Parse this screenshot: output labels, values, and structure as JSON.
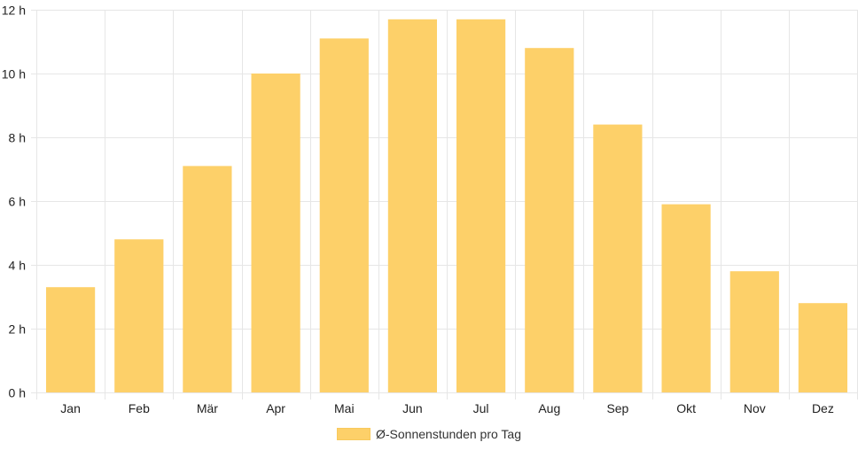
{
  "chart_data": {
    "type": "bar",
    "categories": [
      "Jan",
      "Feb",
      "Mär",
      "Apr",
      "Mai",
      "Jun",
      "Jul",
      "Aug",
      "Sep",
      "Okt",
      "Nov",
      "Dez"
    ],
    "series": [
      {
        "name": "Ø-Sonnenstunden pro Tag",
        "values": [
          3.3,
          4.8,
          7.1,
          10.0,
          11.1,
          11.7,
          11.7,
          10.8,
          8.4,
          5.9,
          3.8,
          2.8
        ]
      }
    ],
    "y_ticks": [
      "0 h",
      "2 h",
      "4 h",
      "6 h",
      "8 h",
      "10 h",
      "12 h"
    ],
    "ylim": [
      0,
      12
    ],
    "grid": true,
    "legend_position": "bottom",
    "colors": {
      "bar_fill": "#fdd069",
      "grid": "#e6e6e6",
      "axis_text": "#222222"
    }
  }
}
